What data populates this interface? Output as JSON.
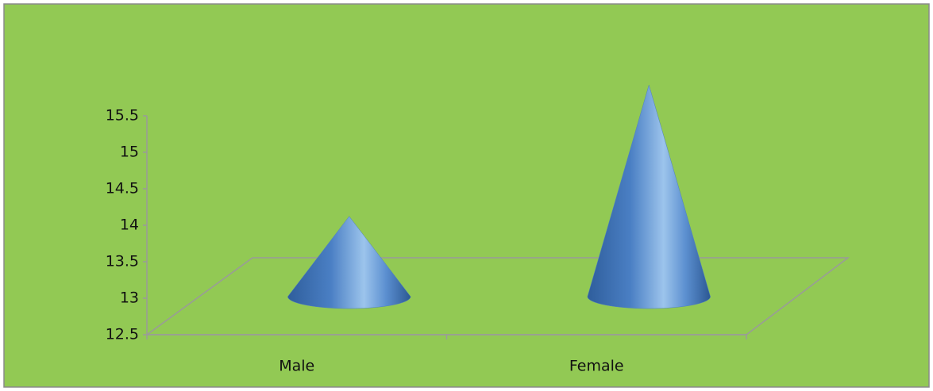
{
  "chart_data": {
    "type": "cone",
    "categories": [
      "Male",
      "Female"
    ],
    "values": [
      13.6,
      15.4
    ],
    "color": "#4f81bd",
    "ylim": [
      12.5,
      15.5
    ],
    "yticks": [
      12.5,
      13,
      13.5,
      14,
      14.5,
      15,
      15.5
    ],
    "grid": false
  }
}
